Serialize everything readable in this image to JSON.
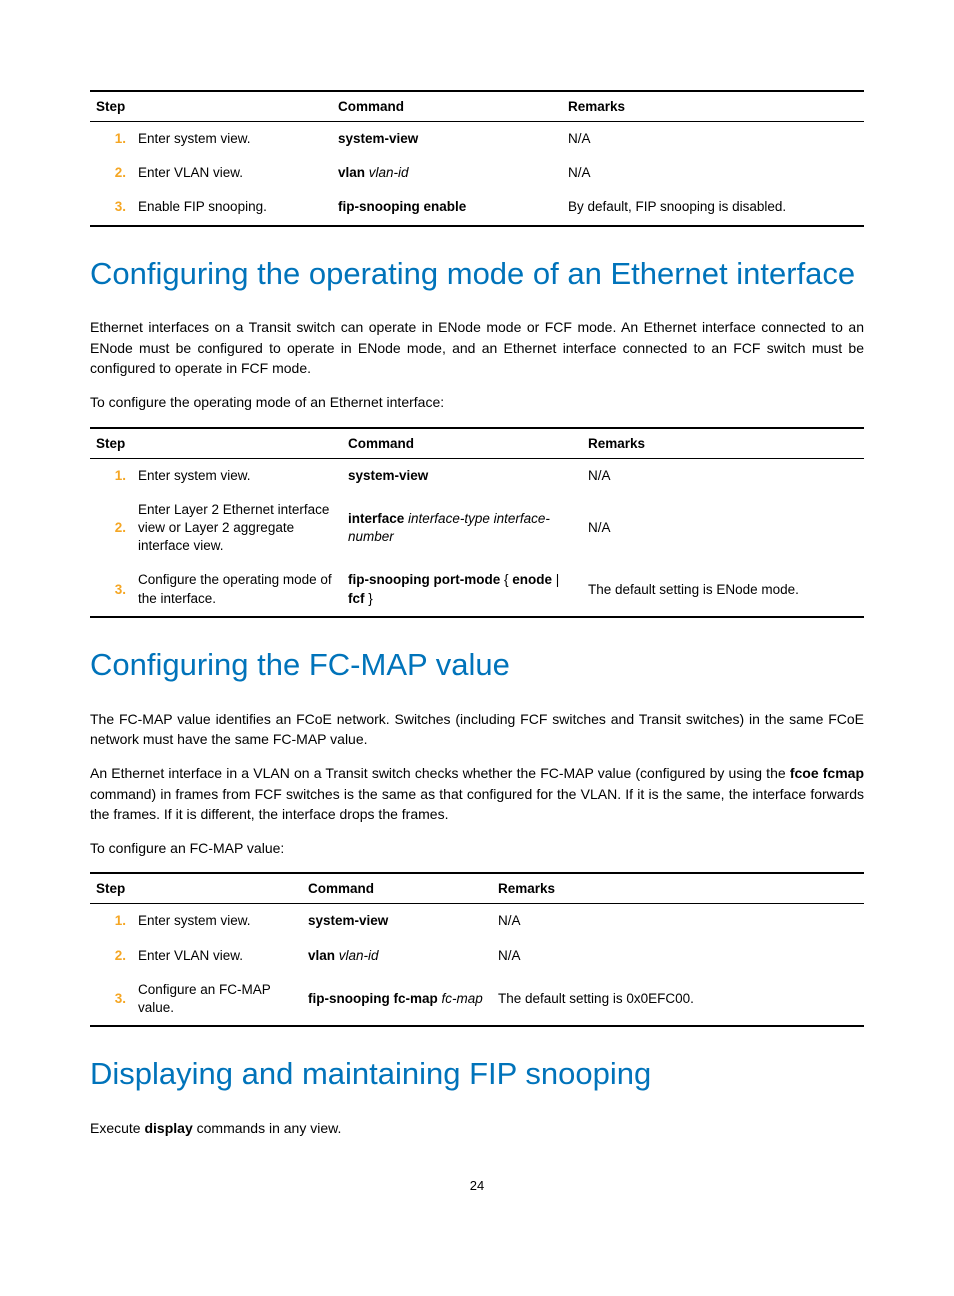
{
  "page_number": "24",
  "accent_color": "#f5a623",
  "heading_color": "#0073ba",
  "table1": {
    "headers": {
      "step": "Step",
      "command": "Command",
      "remarks": "Remarks"
    },
    "col_widths": [
      "40px",
      "200px",
      "230px",
      "auto"
    ],
    "rows": [
      {
        "num": "1.",
        "step": "Enter system view.",
        "cmd_bold": "system-view",
        "cmd_ital": "",
        "remarks": "N/A"
      },
      {
        "num": "2.",
        "step": "Enter VLAN view.",
        "cmd_bold": "vlan",
        "cmd_ital": " vlan-id",
        "remarks": "N/A"
      },
      {
        "num": "3.",
        "step": "Enable FIP snooping.",
        "cmd_bold": "fip-snooping enable",
        "cmd_ital": "",
        "remarks": "By default, FIP snooping is disabled."
      }
    ]
  },
  "section1": {
    "heading": "Configuring the operating mode of an Ethernet interface",
    "para1": "Ethernet interfaces on a Transit switch can operate in ENode mode or FCF mode. An Ethernet interface connected to an ENode must be configured to operate in ENode mode, and an Ethernet interface connected to an FCF switch must be configured to operate in FCF mode.",
    "para2": "To configure the operating mode of an Ethernet interface:"
  },
  "table2": {
    "headers": {
      "step": "Step",
      "command": "Command",
      "remarks": "Remarks"
    },
    "col_widths": [
      "40px",
      "210px",
      "240px",
      "auto"
    ],
    "rows": [
      {
        "num": "1.",
        "step": "Enter system view.",
        "cmd_html": "<span class='cmd-bold'>system-view</span>",
        "remarks": "N/A"
      },
      {
        "num": "2.",
        "step": "Enter Layer 2 Ethernet interface view or Layer 2 aggregate interface view.",
        "cmd_html": "<span class='cmd-bold'>interface</span> <span class='cmd-ital'>interface-type interface-number</span>",
        "remarks": "N/A"
      },
      {
        "num": "3.",
        "step": "Configure the operating mode of the interface.",
        "cmd_html": "<span class='cmd-bold'>fip-snooping port-mode</span> { <span class='cmd-bold'>enode</span> | <span class='cmd-bold'>fcf</span> }",
        "remarks": "The default setting is ENode mode."
      }
    ]
  },
  "section2": {
    "heading": "Configuring the FC-MAP value",
    "para1": "The FC-MAP value identifies an FCoE network. Switches (including FCF switches and Transit switches) in the same FCoE network must have the same FC-MAP value.",
    "para2_pre": "An Ethernet interface in a VLAN on a Transit switch checks whether the FC-MAP value (configured by using the ",
    "para2_bold": "fcoe fcmap",
    "para2_post": " command) in frames from FCF switches is the same as that configured for the VLAN. If it is the same, the interface forwards the frames. If it is different, the interface drops the frames.",
    "para3": "To configure an FC-MAP value:"
  },
  "table3": {
    "headers": {
      "step": "Step",
      "command": "Command",
      "remarks": "Remarks"
    },
    "col_widths": [
      "40px",
      "170px",
      "190px",
      "auto"
    ],
    "rows": [
      {
        "num": "1.",
        "step": "Enter system view.",
        "cmd_html": "<span class='cmd-bold'>system-view</span>",
        "remarks": "N/A"
      },
      {
        "num": "2.",
        "step": "Enter VLAN view.",
        "cmd_html": "<span class='cmd-bold'>vlan</span> <span class='cmd-ital'>vlan-id</span>",
        "remarks": "N/A"
      },
      {
        "num": "3.",
        "step": "Configure an FC-MAP value.",
        "cmd_html": "<span class='cmd-bold'>fip-snooping fc-map</span> <span class='cmd-ital'>fc-map</span>",
        "remarks": "The default setting is 0x0EFC00."
      }
    ]
  },
  "section3": {
    "heading": "Displaying and maintaining FIP snooping",
    "para1_pre": "Execute ",
    "para1_bold": "display",
    "para1_post": " commands in any view."
  }
}
